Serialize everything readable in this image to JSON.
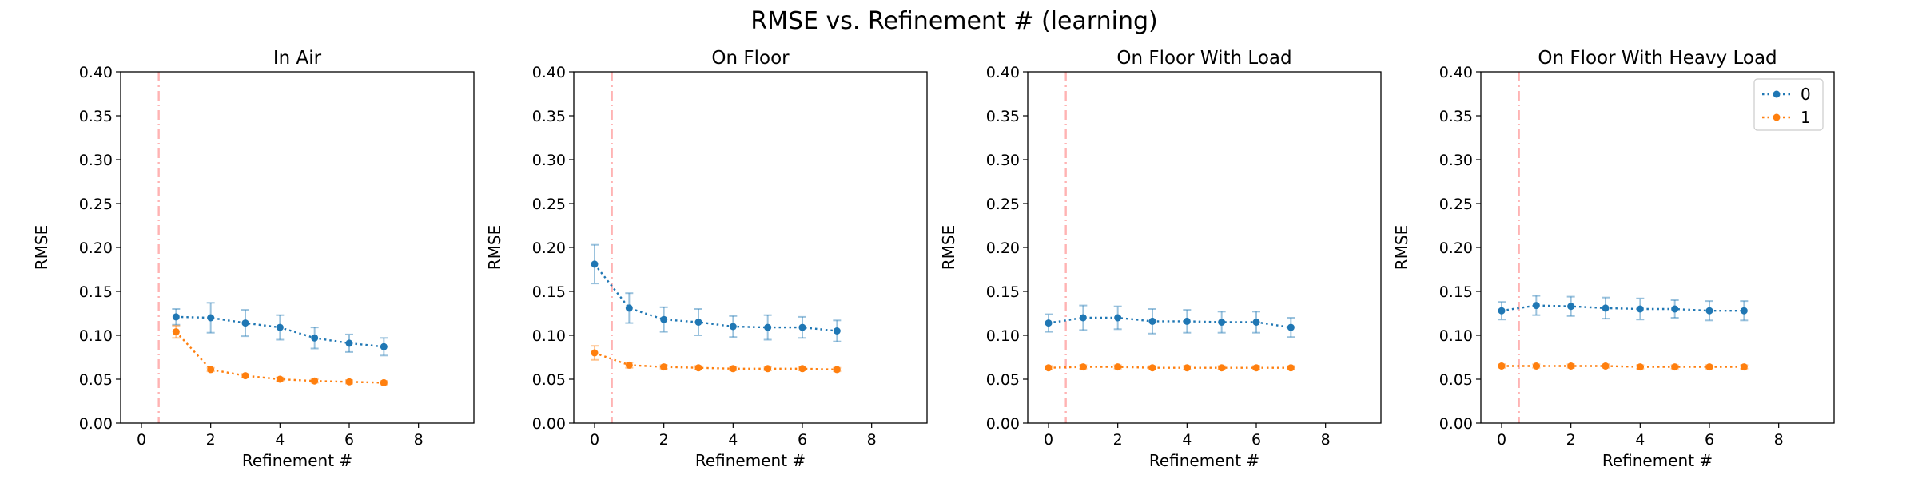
{
  "figure": {
    "title": "RMSE vs. Refinement # (learning)"
  },
  "chart_data": [
    {
      "type": "line",
      "title": "In Air",
      "xlabel": "Refinement #",
      "ylabel": "RMSE",
      "xlim": [
        -0.6,
        9.6
      ],
      "ylim": [
        0,
        0.4
      ],
      "xticks": [
        "0",
        "2",
        "4",
        "6",
        "8"
      ],
      "yticks": [
        "0.00",
        "0.05",
        "0.10",
        "0.15",
        "0.20",
        "0.25",
        "0.30",
        "0.35",
        "0.40"
      ],
      "vline": 0.5,
      "series": [
        {
          "name": "0",
          "color": "#1f77b4",
          "x": [
            1,
            2,
            3,
            4,
            5,
            6,
            7
          ],
          "y": [
            0.121,
            0.12,
            0.114,
            0.109,
            0.097,
            0.091,
            0.087
          ],
          "err": [
            0.009,
            0.017,
            0.015,
            0.014,
            0.012,
            0.01,
            0.01
          ]
        },
        {
          "name": "1",
          "color": "#ff7f0e",
          "x": [
            1,
            2,
            3,
            4,
            5,
            6,
            7
          ],
          "y": [
            0.104,
            0.061,
            0.054,
            0.05,
            0.048,
            0.047,
            0.046
          ],
          "err": [
            0.007,
            0.002,
            0.002,
            0.002,
            0.002,
            0.002,
            0.002
          ]
        }
      ]
    },
    {
      "type": "line",
      "title": "On Floor",
      "xlabel": "Refinement #",
      "ylabel": "RMSE",
      "xlim": [
        -0.6,
        9.6
      ],
      "ylim": [
        0,
        0.4
      ],
      "xticks": [
        "0",
        "2",
        "4",
        "6",
        "8"
      ],
      "yticks": [
        "0.00",
        "0.05",
        "0.10",
        "0.15",
        "0.20",
        "0.25",
        "0.30",
        "0.35",
        "0.40"
      ],
      "vline": 0.5,
      "series": [
        {
          "name": "0",
          "color": "#1f77b4",
          "x": [
            0,
            1,
            2,
            3,
            4,
            5,
            6,
            7
          ],
          "y": [
            0.181,
            0.131,
            0.118,
            0.115,
            0.11,
            0.109,
            0.109,
            0.105
          ],
          "err": [
            0.022,
            0.017,
            0.014,
            0.015,
            0.012,
            0.014,
            0.012,
            0.012
          ]
        },
        {
          "name": "1",
          "color": "#ff7f0e",
          "x": [
            0,
            1,
            2,
            3,
            4,
            5,
            6,
            7
          ],
          "y": [
            0.08,
            0.066,
            0.064,
            0.063,
            0.062,
            0.062,
            0.062,
            0.061
          ],
          "err": [
            0.008,
            0.003,
            0.002,
            0.002,
            0.002,
            0.002,
            0.002,
            0.002
          ]
        }
      ]
    },
    {
      "type": "line",
      "title": "On Floor With Load",
      "xlabel": "Refinement #",
      "ylabel": "RMSE",
      "xlim": [
        -0.6,
        9.6
      ],
      "ylim": [
        0,
        0.4
      ],
      "xticks": [
        "0",
        "2",
        "4",
        "6",
        "8"
      ],
      "yticks": [
        "0.00",
        "0.05",
        "0.10",
        "0.15",
        "0.20",
        "0.25",
        "0.30",
        "0.35",
        "0.40"
      ],
      "vline": 0.5,
      "series": [
        {
          "name": "0",
          "color": "#1f77b4",
          "x": [
            0,
            1,
            2,
            3,
            4,
            5,
            6,
            7
          ],
          "y": [
            0.114,
            0.12,
            0.12,
            0.116,
            0.116,
            0.115,
            0.115,
            0.109
          ],
          "err": [
            0.01,
            0.014,
            0.013,
            0.014,
            0.013,
            0.012,
            0.012,
            0.011
          ]
        },
        {
          "name": "1",
          "color": "#ff7f0e",
          "x": [
            0,
            1,
            2,
            3,
            4,
            5,
            6,
            7
          ],
          "y": [
            0.063,
            0.064,
            0.064,
            0.063,
            0.063,
            0.063,
            0.063,
            0.063
          ],
          "err": [
            0.002,
            0.002,
            0.002,
            0.002,
            0.002,
            0.002,
            0.002,
            0.002
          ]
        }
      ]
    },
    {
      "type": "line",
      "title": "On Floor With Heavy Load",
      "xlabel": "Refinement #",
      "ylabel": "RMSE",
      "xlim": [
        -0.6,
        9.6
      ],
      "ylim": [
        0,
        0.4
      ],
      "xticks": [
        "0",
        "2",
        "4",
        "6",
        "8"
      ],
      "yticks": [
        "0.00",
        "0.05",
        "0.10",
        "0.15",
        "0.20",
        "0.25",
        "0.30",
        "0.35",
        "0.40"
      ],
      "vline": 0.5,
      "legend": "top-right",
      "series": [
        {
          "name": "0",
          "color": "#1f77b4",
          "x": [
            0,
            1,
            2,
            3,
            4,
            5,
            6,
            7
          ],
          "y": [
            0.128,
            0.134,
            0.133,
            0.131,
            0.13,
            0.13,
            0.128,
            0.128
          ],
          "err": [
            0.01,
            0.011,
            0.011,
            0.012,
            0.012,
            0.01,
            0.011,
            0.011
          ]
        },
        {
          "name": "1",
          "color": "#ff7f0e",
          "x": [
            0,
            1,
            2,
            3,
            4,
            5,
            6,
            7
          ],
          "y": [
            0.065,
            0.065,
            0.065,
            0.065,
            0.064,
            0.064,
            0.064,
            0.064
          ],
          "err": [
            0.002,
            0.002,
            0.002,
            0.002,
            0.002,
            0.002,
            0.002,
            0.002
          ]
        }
      ]
    }
  ]
}
